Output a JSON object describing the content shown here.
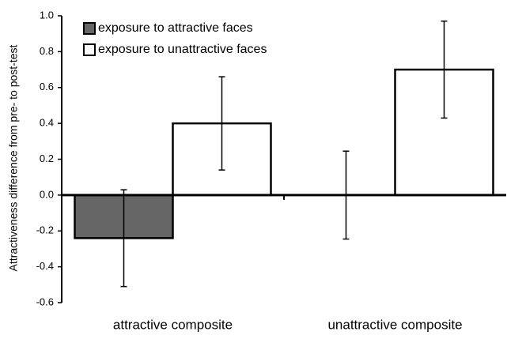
{
  "chart_data": {
    "type": "bar",
    "y_label": "Attractiveness difference from pre- to post-test",
    "categories": [
      "attractive composite",
      "unattractive composite"
    ],
    "series": [
      {
        "name": "exposure to attractive faces",
        "color": "#666666",
        "values": [
          -0.24,
          0.0
        ],
        "errors": [
          0.27,
          0.245
        ]
      },
      {
        "name": "exposure to unattractive faces",
        "color": "#ffffff",
        "values": [
          0.4,
          0.7
        ],
        "errors": [
          0.26,
          0.27
        ]
      }
    ],
    "ylim": [
      -0.6,
      1.0
    ],
    "yticks": [
      -0.6,
      -0.4,
      -0.2,
      {
        "value": 0,
        "label": "0.0"
      },
      0.2,
      0.4,
      0.6,
      0.8,
      {
        "value": 1,
        "label": "1.0"
      }
    ],
    "legend": "top-left"
  }
}
